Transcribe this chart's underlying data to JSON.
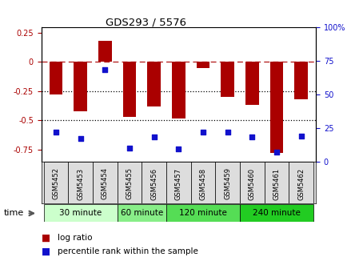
{
  "title": "GDS293 / 5576",
  "samples": [
    "GSM5452",
    "GSM5453",
    "GSM5454",
    "GSM5455",
    "GSM5456",
    "GSM5457",
    "GSM5458",
    "GSM5459",
    "GSM5460",
    "GSM5461",
    "GSM5462"
  ],
  "log_ratio": [
    -0.28,
    -0.42,
    0.18,
    -0.47,
    -0.38,
    -0.48,
    -0.05,
    -0.3,
    -0.37,
    -0.78,
    -0.32
  ],
  "percentile_rank": [
    22,
    17,
    68,
    10,
    18,
    9,
    22,
    22,
    18,
    7,
    19
  ],
  "bar_color": "#aa0000",
  "dot_color": "#1111cc",
  "ylim_left": [
    -0.85,
    0.3
  ],
  "ylim_right": [
    0,
    100
  ],
  "yticks_left": [
    0.25,
    0,
    -0.25,
    -0.5,
    -0.75
  ],
  "yticks_right": [
    100,
    75,
    50,
    25,
    0
  ],
  "groups": [
    {
      "label": "30 minute",
      "start": 0,
      "end": 2,
      "color": "#ccffcc"
    },
    {
      "label": "60 minute",
      "start": 3,
      "end": 4,
      "color": "#88ee88"
    },
    {
      "label": "120 minute",
      "start": 5,
      "end": 7,
      "color": "#55dd55"
    },
    {
      "label": "240 minute",
      "start": 8,
      "end": 10,
      "color": "#22cc22"
    }
  ],
  "time_label": "time",
  "legend_log_ratio": "log ratio",
  "legend_percentile": "percentile rank within the sample"
}
